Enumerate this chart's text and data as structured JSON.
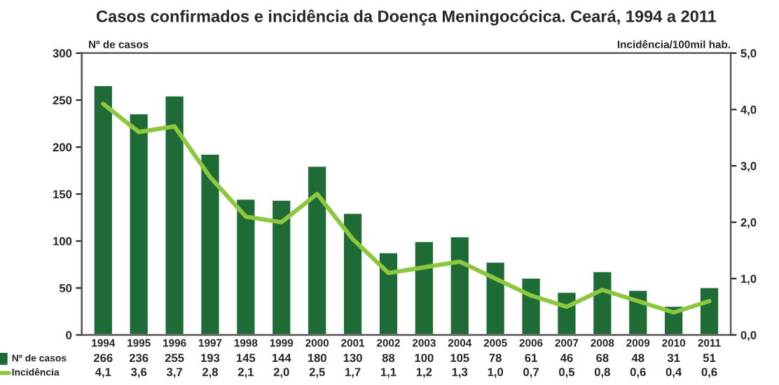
{
  "chart_data": {
    "type": "bar",
    "title": "Casos confirmados e incidência da Doença Meningocócica. Ceará, 1994 a 2011",
    "ylabel": "Nº de casos",
    "y2label": "Incidência/100mil hab.",
    "categories": [
      "1994",
      "1995",
      "1996",
      "1997",
      "1998",
      "1999",
      "2000",
      "2001",
      "2002",
      "2003",
      "2004",
      "2005",
      "2006",
      "2007",
      "2008",
      "2009",
      "2010",
      "2011"
    ],
    "series": [
      {
        "name": "Nº de casos",
        "color": "#1e6b35",
        "values": [
          266,
          236,
          255,
          193,
          145,
          144,
          180,
          130,
          88,
          100,
          105,
          78,
          61,
          46,
          68,
          48,
          31,
          51
        ],
        "value_labels": [
          "266",
          "236",
          "255",
          "193",
          "145",
          "144",
          "180",
          "130",
          "88",
          "100",
          "105",
          "78",
          "61",
          "46",
          "68",
          "48",
          "31",
          "51"
        ]
      },
      {
        "name": "Incidência",
        "type": "line",
        "axis": "y2",
        "color": "#8dc63f",
        "values": [
          4.1,
          3.6,
          3.7,
          2.8,
          2.1,
          2.0,
          2.5,
          1.7,
          1.1,
          1.2,
          1.3,
          1.0,
          0.7,
          0.5,
          0.8,
          0.6,
          0.4,
          0.6
        ],
        "value_labels": [
          "4,1",
          "3,6",
          "3,7",
          "2,8",
          "2,1",
          "2,0",
          "2,5",
          "1,7",
          "1,1",
          "1,2",
          "1,3",
          "1,0",
          "0,7",
          "0,5",
          "0,8",
          "0,6",
          "0,4",
          "0,6"
        ]
      }
    ],
    "ylim": [
      0,
      300
    ],
    "yticks": [
      0,
      50,
      100,
      150,
      200,
      250,
      300
    ],
    "y2lim": [
      0,
      5
    ],
    "y2ticks": [
      {
        "value": 0,
        "label": "0,0"
      },
      {
        "value": 1,
        "label": "1,0"
      },
      {
        "value": 2,
        "label": "2,0"
      },
      {
        "value": 3,
        "label": "3,0"
      },
      {
        "value": 4,
        "label": "4,0"
      },
      {
        "value": 5,
        "label": "5,0"
      }
    ],
    "legend": "bottom",
    "grid": false,
    "marker": "none",
    "line_style": "solid"
  }
}
